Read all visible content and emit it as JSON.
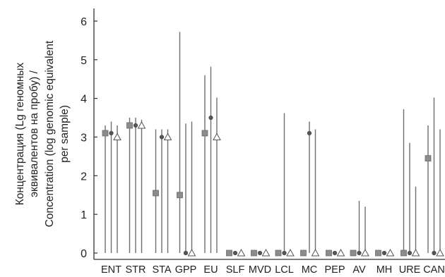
{
  "chart_data": {
    "type": "scatter",
    "ylabel_lines": [
      "Концентрация (Lg геномных",
      "эквивалентов на пробу) /",
      "Concentration (log genomic equivalent",
      "per sample)"
    ],
    "ylim": [
      -0.1,
      6.2
    ],
    "yticks": [
      "0",
      "1",
      "2",
      "3",
      "4",
      "5",
      "6"
    ],
    "ytick_values": [
      0,
      1,
      2,
      3,
      4,
      5,
      6
    ],
    "grid": false,
    "categories": [
      "ENT",
      "STR",
      "STA",
      "GPP",
      "EU",
      "SLF",
      "MVD",
      "LCL",
      "MC",
      "PEP",
      "AV",
      "MH",
      "URE",
      "CAN"
    ],
    "series": [
      {
        "marker": "square",
        "color": "#8c8c8c",
        "values": [
          3.1,
          3.3,
          1.55,
          1.5,
          3.1,
          0,
          0,
          0,
          0,
          0,
          0,
          0,
          0,
          2.45
        ],
        "upper": [
          3.3,
          3.5,
          3.2,
          5.72,
          4.6,
          0,
          0,
          0,
          0,
          0,
          0,
          0,
          3.72,
          3.3
        ]
      },
      {
        "marker": "circle",
        "color": "#555555",
        "values": [
          3.1,
          3.3,
          3.0,
          0,
          3.5,
          0,
          0,
          0,
          3.1,
          0,
          0,
          0,
          0,
          0
        ],
        "upper": [
          3.4,
          3.5,
          3.2,
          3.35,
          4.82,
          0,
          0,
          3.62,
          3.4,
          0,
          1.35,
          0,
          2.85,
          4.02
        ]
      },
      {
        "marker": "triangle",
        "color": "#ffffff",
        "values": [
          3.0,
          3.3,
          3.0,
          0,
          3.0,
          0,
          0,
          0,
          0,
          0,
          0,
          0,
          0,
          0
        ],
        "upper": [
          3.3,
          3.45,
          3.2,
          3.4,
          4.02,
          0,
          0,
          0,
          3.2,
          0,
          1.2,
          0,
          1.72,
          3.2
        ]
      }
    ]
  }
}
